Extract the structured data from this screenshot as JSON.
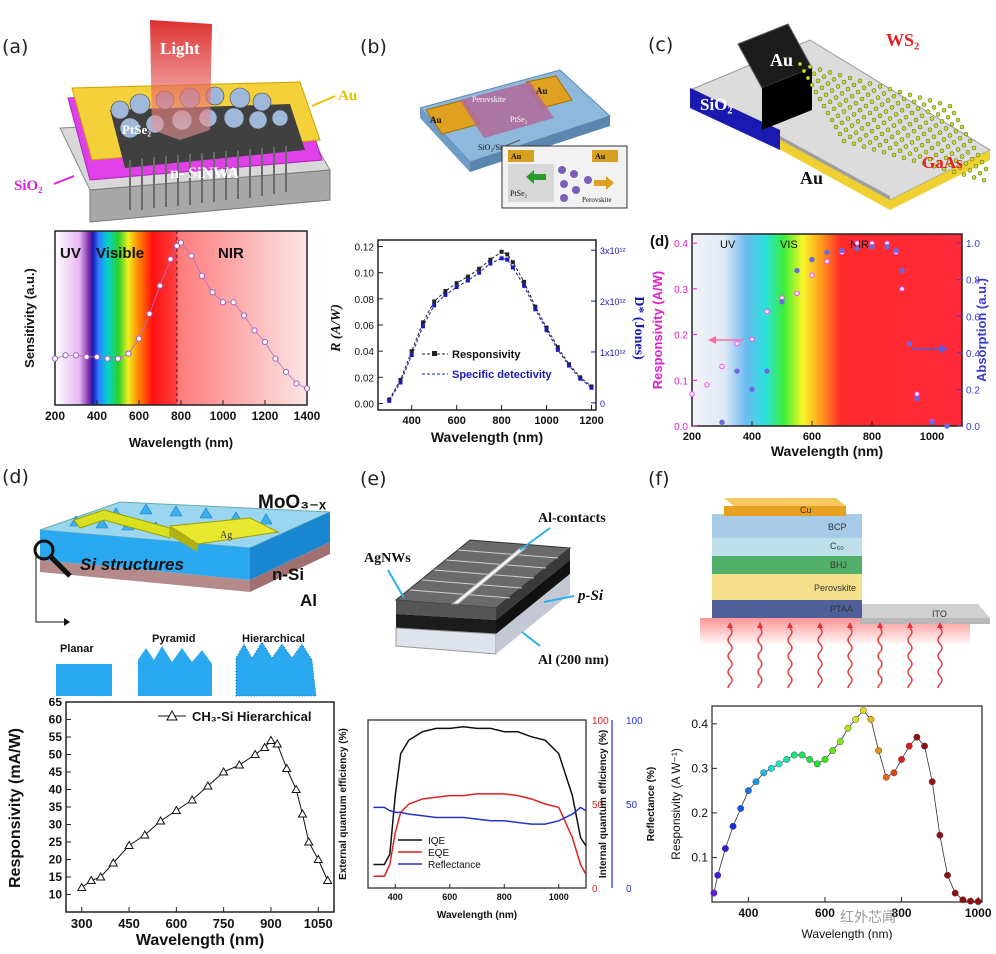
{
  "figure": {
    "panel_labels": [
      "(a)",
      "(b)",
      "(c)",
      "(d)",
      "(e)",
      "(f)",
      "(d)"
    ],
    "watermark": "红外芯闻"
  },
  "schematics": {
    "a": {
      "light": "Light",
      "au": "Au",
      "ptse2": "PtSe₂",
      "sinwa": "n- SiNWA",
      "sio2": "SiO₂"
    },
    "b": {
      "perovskite": "Perovskite",
      "au_left": "Au",
      "au_right": "Au",
      "ptse2": "PtSe₂",
      "sio2si": "SiO₂/Si",
      "inset_au_left": "Au",
      "inset_au_right": "Au",
      "inset_ptse2": "PtSe₂",
      "inset_perovskite": "Perovskite"
    },
    "c": {
      "au_top": "Au",
      "ws2": "WS₂",
      "sio2": "SiO₂",
      "gaas": "GaAs",
      "au_bottom": "Au"
    },
    "d": {
      "moo3": "MoO₃₋ₓ",
      "ag": "Ag",
      "si_structures": "Si structures",
      "nsi": "n-Si",
      "al": "Al",
      "planar": "Planar",
      "pyramid": "Pyramid",
      "hierarchical": "Hierarchical"
    },
    "e": {
      "al_contacts": "Al-contacts",
      "agnws": "AgNWs",
      "psi": "p-Si",
      "al200": "Al (200 nm)"
    },
    "f": {
      "cu": "Cu",
      "bcp": "BCP",
      "c60": "C₆₀",
      "bhj": "BHJ",
      "perovskite": "Perovskite",
      "ptaa": "PTAA",
      "ito": "ITO"
    }
  },
  "chart_data": [
    {
      "id": "a",
      "type": "line",
      "xlabel": "Wavelength (nm)",
      "ylabel": "Sensitivity (a.u.)",
      "xlim": [
        200,
        1400
      ],
      "xticks": [
        200,
        400,
        600,
        800,
        1000,
        1200,
        1400
      ],
      "regions": [
        "UV",
        "Visible",
        "NIR"
      ],
      "x": [
        200,
        250,
        300,
        350,
        400,
        450,
        500,
        550,
        600,
        650,
        700,
        750,
        780,
        800,
        850,
        900,
        950,
        1000,
        1050,
        1100,
        1150,
        1200,
        1250,
        1300,
        1350,
        1400
      ],
      "values": [
        0.28,
        0.3,
        0.3,
        0.29,
        0.29,
        0.28,
        0.28,
        0.31,
        0.4,
        0.55,
        0.72,
        0.88,
        0.96,
        0.98,
        0.9,
        0.78,
        0.68,
        0.62,
        0.62,
        0.54,
        0.45,
        0.38,
        0.28,
        0.2,
        0.13,
        0.1
      ]
    },
    {
      "id": "b",
      "type": "line",
      "xlabel": "Wavelength (nm)",
      "ylabel": "R (A/W)",
      "y2label": "D* (Jones)",
      "xlim": [
        250,
        1220
      ],
      "ylim": [
        -0.005,
        0.125
      ],
      "xticks": [
        400,
        600,
        800,
        1000,
        1200
      ],
      "yticks": [
        "0.00",
        "0.02",
        "0.04",
        "0.06",
        "0.08",
        "0.10",
        "0.12"
      ],
      "y2ticks": [
        "0",
        "1x10¹²",
        "2x10¹²",
        "3x10¹²"
      ],
      "x": [
        300,
        350,
        400,
        450,
        500,
        550,
        600,
        650,
        700,
        750,
        800,
        825,
        850,
        900,
        950,
        1000,
        1050,
        1100,
        1150,
        1200
      ],
      "series": [
        {
          "name": "Responsivity",
          "color": "#222222",
          "values": [
            0.003,
            0.018,
            0.04,
            0.062,
            0.078,
            0.086,
            0.092,
            0.097,
            0.103,
            0.11,
            0.116,
            0.114,
            0.108,
            0.093,
            0.074,
            0.058,
            0.043,
            0.03,
            0.02,
            0.013
          ]
        },
        {
          "name": "Specific detectivity",
          "color": "#1a1ab8",
          "values": [
            0.002,
            0.016,
            0.037,
            0.059,
            0.075,
            0.083,
            0.089,
            0.094,
            0.1,
            0.107,
            0.111,
            0.11,
            0.104,
            0.09,
            0.072,
            0.056,
            0.041,
            0.029,
            0.019,
            0.012
          ]
        }
      ]
    },
    {
      "id": "c",
      "type": "line",
      "panel_label": "(d)",
      "xlabel": "Wavelength (nm)",
      "ylabel": "Responsivity (A/W)",
      "y2label": "Absorption (a.u.)",
      "xlim": [
        200,
        1100
      ],
      "ylim": [
        0,
        0.42
      ],
      "y2lim": [
        0,
        1.05
      ],
      "xticks": [
        200,
        400,
        600,
        800,
        1000
      ],
      "yticks": [
        "0.0",
        "0.1",
        "0.2",
        "0.3",
        "0.4"
      ],
      "y2ticks": [
        "0.0",
        "0.2",
        "0.4",
        "0.6",
        "0.8",
        "1.0"
      ],
      "regions": [
        "UV",
        "VIS",
        "NIR"
      ],
      "x": [
        200,
        250,
        300,
        350,
        400,
        450,
        500,
        550,
        600,
        650,
        700,
        750,
        800,
        850,
        880,
        900,
        925,
        950,
        1000,
        1050
      ],
      "series": [
        {
          "name": "Responsivity",
          "color": "#ff40ff",
          "values": [
            0.07,
            0.09,
            0.13,
            0.18,
            0.19,
            0.25,
            0.28,
            0.29,
            0.33,
            0.36,
            0.38,
            0.4,
            0.4,
            0.4,
            0.38,
            0.3,
            0.18,
            0.07,
            0.01,
            0.0
          ]
        },
        {
          "name": "Absorption",
          "color": "#6a6ae0",
          "values": [
            null,
            null,
            0.02,
            0.3,
            0.2,
            0.3,
            0.68,
            0.85,
            0.91,
            0.95,
            0.96,
            0.97,
            0.98,
            0.98,
            0.96,
            0.85,
            0.45,
            0.15,
            0.02,
            0.0
          ]
        }
      ]
    },
    {
      "id": "d",
      "type": "line",
      "xlabel": "Wavelength (nm)",
      "ylabel": "Responsivity (mA/W)",
      "legend": "CH₃-Si Hierarchical",
      "xlim": [
        250,
        1100
      ],
      "ylim": [
        5,
        65
      ],
      "xticks": [
        300,
        450,
        600,
        750,
        900,
        1050
      ],
      "yticks": [
        10,
        15,
        20,
        25,
        30,
        35,
        40,
        45,
        50,
        55,
        60,
        65
      ],
      "x": [
        300,
        330,
        360,
        400,
        450,
        500,
        550,
        600,
        650,
        700,
        750,
        800,
        850,
        880,
        900,
        920,
        950,
        980,
        1000,
        1020,
        1050,
        1080
      ],
      "values": [
        12,
        14,
        15,
        19,
        24,
        27,
        31,
        34,
        37,
        41,
        45,
        47,
        50,
        52,
        54,
        53,
        46,
        40,
        33,
        25,
        20,
        14
      ]
    },
    {
      "id": "e",
      "type": "line",
      "xlabel": "Wavelength (nm)",
      "ylabel": "External quantum efficiency (%)",
      "y2label": "Internal quantum efficiency (%)",
      "y3label": "Reflectance (%)",
      "xlim": [
        300,
        1100
      ],
      "ylim": [
        0,
        100
      ],
      "xticks": [
        400,
        600,
        800,
        1000
      ],
      "y2ticks": [
        0,
        50,
        100
      ],
      "y3ticks": [
        0,
        50,
        100
      ],
      "x": [
        320,
        360,
        380,
        400,
        420,
        450,
        500,
        550,
        600,
        650,
        700,
        750,
        800,
        850,
        900,
        950,
        1000,
        1050,
        1080,
        1100
      ],
      "series": [
        {
          "name": "IQE",
          "color": "#111111",
          "values": [
            14,
            14,
            20,
            55,
            80,
            88,
            93,
            95,
            95,
            96,
            95,
            95,
            93,
            93,
            90,
            88,
            80,
            55,
            30,
            25
          ]
        },
        {
          "name": "EQE",
          "color": "#dd2222",
          "values": [
            7,
            7,
            14,
            33,
            45,
            50,
            53,
            54,
            55,
            55,
            56,
            56,
            56,
            55,
            53,
            50,
            48,
            30,
            14,
            8
          ]
        },
        {
          "name": "Reflectance",
          "color": "#2233cc",
          "values": [
            48,
            48,
            46,
            45,
            45,
            44,
            43,
            42,
            42,
            42,
            41,
            40,
            40,
            39,
            38,
            38,
            40,
            44,
            48,
            46
          ]
        }
      ]
    },
    {
      "id": "f",
      "type": "scatter",
      "xlabel": "Wavelength (nm)",
      "ylabel": "Responsivity (A W⁻¹)",
      "xlim": [
        305,
        1010
      ],
      "ylim": [
        0,
        0.44
      ],
      "xticks": [
        400,
        600,
        800,
        1000
      ],
      "yticks": [
        "0.1",
        "0.2",
        "0.3",
        "0.4"
      ],
      "x": [
        310,
        320,
        340,
        360,
        380,
        400,
        420,
        440,
        460,
        480,
        500,
        520,
        540,
        560,
        580,
        600,
        620,
        640,
        660,
        680,
        700,
        720,
        740,
        760,
        780,
        800,
        820,
        840,
        860,
        880,
        900,
        920,
        940,
        960,
        980,
        1000
      ],
      "values": [
        0.02,
        0.06,
        0.12,
        0.17,
        0.21,
        0.25,
        0.27,
        0.29,
        0.3,
        0.31,
        0.32,
        0.33,
        0.33,
        0.32,
        0.31,
        0.32,
        0.34,
        0.36,
        0.39,
        0.41,
        0.43,
        0.41,
        0.34,
        0.28,
        0.29,
        0.32,
        0.35,
        0.37,
        0.35,
        0.27,
        0.15,
        0.06,
        0.02,
        0.005,
        0.002,
        0.001
      ]
    }
  ]
}
